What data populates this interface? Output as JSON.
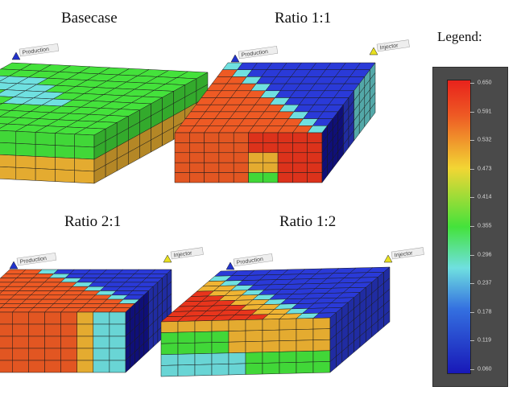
{
  "panels": [
    {
      "title": "Basecase"
    },
    {
      "title": "Ratio 1:1"
    },
    {
      "title": "Ratio 2:1"
    },
    {
      "title": "Ratio 1:2"
    }
  ],
  "wells": {
    "production": "Production",
    "injector": "Injector"
  },
  "legend": {
    "title": "Legend:",
    "ticks": [
      "0.650",
      "0.591",
      "0.532",
      "0.473",
      "0.414",
      "0.355",
      "0.296",
      "0.237",
      "0.178",
      "0.119",
      "0.060"
    ],
    "min": 0.06,
    "max": 0.65
  },
  "colors": {
    "red": "#e8351c",
    "orange": "#ee5a24",
    "amber": "#f0b433",
    "green": "#44e23b",
    "cyan": "#6fe0e0",
    "blue": "#2a3ad8",
    "navy": "#1414a0"
  }
}
